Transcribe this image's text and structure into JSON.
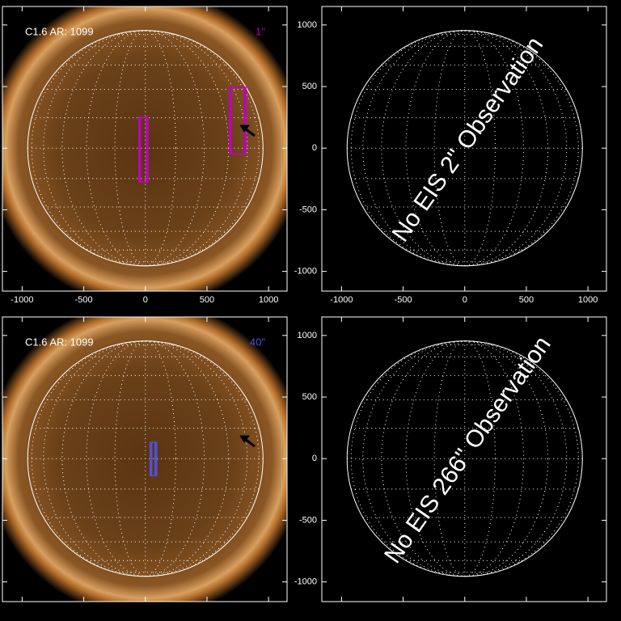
{
  "panels": [
    {
      "label": "C1.6 AR: 1099",
      "slit_label": "1\"",
      "slit_color": "#c000c0",
      "image": true,
      "xlim": [
        -1160,
        1150
      ],
      "ylim": [
        -1160,
        1150
      ],
      "xticks": [
        -1000,
        -500,
        0,
        500,
        1000
      ],
      "yticks": [
        -1000,
        -500,
        0,
        500,
        1000
      ],
      "tick_labels": [
        "x",
        "y"
      ],
      "solar_radius": 955,
      "boxes": [
        {
          "x": [
            -53,
            20
          ],
          "y": [
            -276,
            250
          ]
        },
        {
          "x": [
            684,
            816
          ],
          "y": [
            -46,
            493
          ]
        }
      ]
    },
    {
      "message": "No EIS 2\" Observation",
      "image": false,
      "xlim": [
        -1160,
        1150
      ],
      "ylim": [
        -1160,
        1150
      ],
      "xticks": [
        -1000,
        -500,
        0,
        500,
        1000
      ],
      "yticks": [
        -1000,
        -500,
        0,
        500,
        1000
      ],
      "tick_labels": [
        "x",
        "y"
      ],
      "solar_radius": 955
    },
    {
      "label": "C1.6 AR: 1099",
      "slit_label": "40\"",
      "slit_color": "#5050e0",
      "image": true,
      "xlim": [
        -1160,
        1150
      ],
      "ylim": [
        -1160,
        1150
      ],
      "xticks": [
        -1000,
        -500,
        0,
        500,
        1000
      ],
      "yticks": [
        -1000,
        -500,
        0,
        500,
        1000
      ],
      "tick_labels": [
        "y"
      ],
      "solar_radius": 955,
      "boxes": [
        {
          "x": [
            39,
            92
          ],
          "y": [
            -138,
            132
          ]
        }
      ]
    },
    {
      "message": "No EIS 266\" Observation",
      "image": false,
      "xlim": [
        -1160,
        1150
      ],
      "ylim": [
        -1160,
        1150
      ],
      "xticks": [
        -1000,
        -500,
        0,
        500,
        1000
      ],
      "yticks": [
        -1000,
        -500,
        0,
        500,
        1000
      ],
      "tick_labels": [
        "y"
      ],
      "solar_radius": 955
    }
  ]
}
